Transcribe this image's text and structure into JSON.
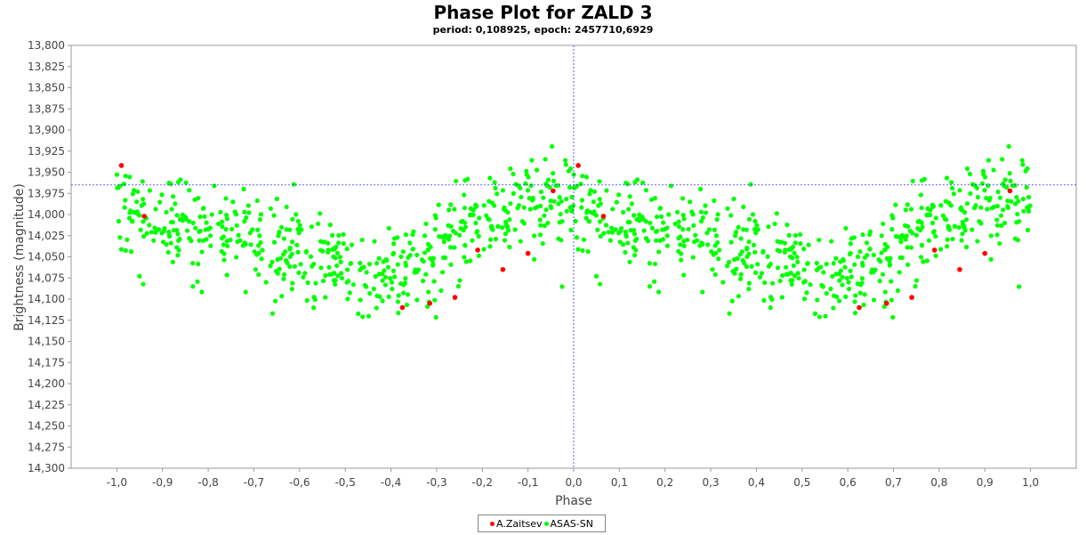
{
  "chart_data": {
    "type": "scatter",
    "title": "Phase Plot for ZALD 3",
    "subtitle": "period: 0,108925, epoch: 2457710,6929",
    "xlabel": "Phase",
    "ylabel": "Brightness (magnitude)",
    "xlim": [
      -1.1,
      1.1
    ],
    "ylim": [
      13.8,
      14.3
    ],
    "y_inverted": true,
    "grid": false,
    "crosshair": {
      "x": 0.0,
      "y": 13.965
    },
    "x_ticks": [
      "-1,0",
      "-0,9",
      "-0,8",
      "-0,7",
      "-0,6",
      "-0,5",
      "-0,4",
      "-0,3",
      "-0,2",
      "-0,1",
      "0,0",
      "0,1",
      "0,2",
      "0,3",
      "0,4",
      "0,5",
      "0,6",
      "0,7",
      "0,8",
      "0,9",
      "1,0"
    ],
    "y_ticks": [
      "13,800",
      "13,825",
      "13,850",
      "13,875",
      "13,900",
      "13,925",
      "13,950",
      "13,975",
      "14,000",
      "14,025",
      "14,050",
      "14,075",
      "14,100",
      "14,125",
      "14,150",
      "14,175",
      "14,200",
      "14,225",
      "14,250",
      "14,275",
      "14,300"
    ],
    "legend_position": "bottom-center",
    "series": [
      {
        "name": "A.Zaitsev",
        "color": "#ff0000",
        "points": [
          [
            -0.99,
            13.942
          ],
          [
            -0.94,
            14.002
          ],
          [
            -0.375,
            14.11
          ],
          [
            -0.315,
            14.105
          ],
          [
            -0.26,
            14.098
          ],
          [
            -0.21,
            14.042
          ],
          [
            -0.155,
            14.065
          ],
          [
            -0.1,
            14.046
          ],
          [
            -0.045,
            13.972
          ],
          [
            0.01,
            13.942
          ],
          [
            0.065,
            14.002
          ],
          [
            0.625,
            14.11
          ],
          [
            0.685,
            14.105
          ],
          [
            0.74,
            14.098
          ],
          [
            0.79,
            14.042
          ],
          [
            0.845,
            14.065
          ],
          [
            0.9,
            14.046
          ],
          [
            0.955,
            13.972
          ]
        ]
      },
      {
        "name": "ASAS-SN",
        "color": "#00ff00",
        "generator": {
          "count_per_half": 560,
          "mean_min": 13.99,
          "amplitude": 0.09,
          "scatter": 0.035,
          "seed": 7
        }
      }
    ]
  }
}
